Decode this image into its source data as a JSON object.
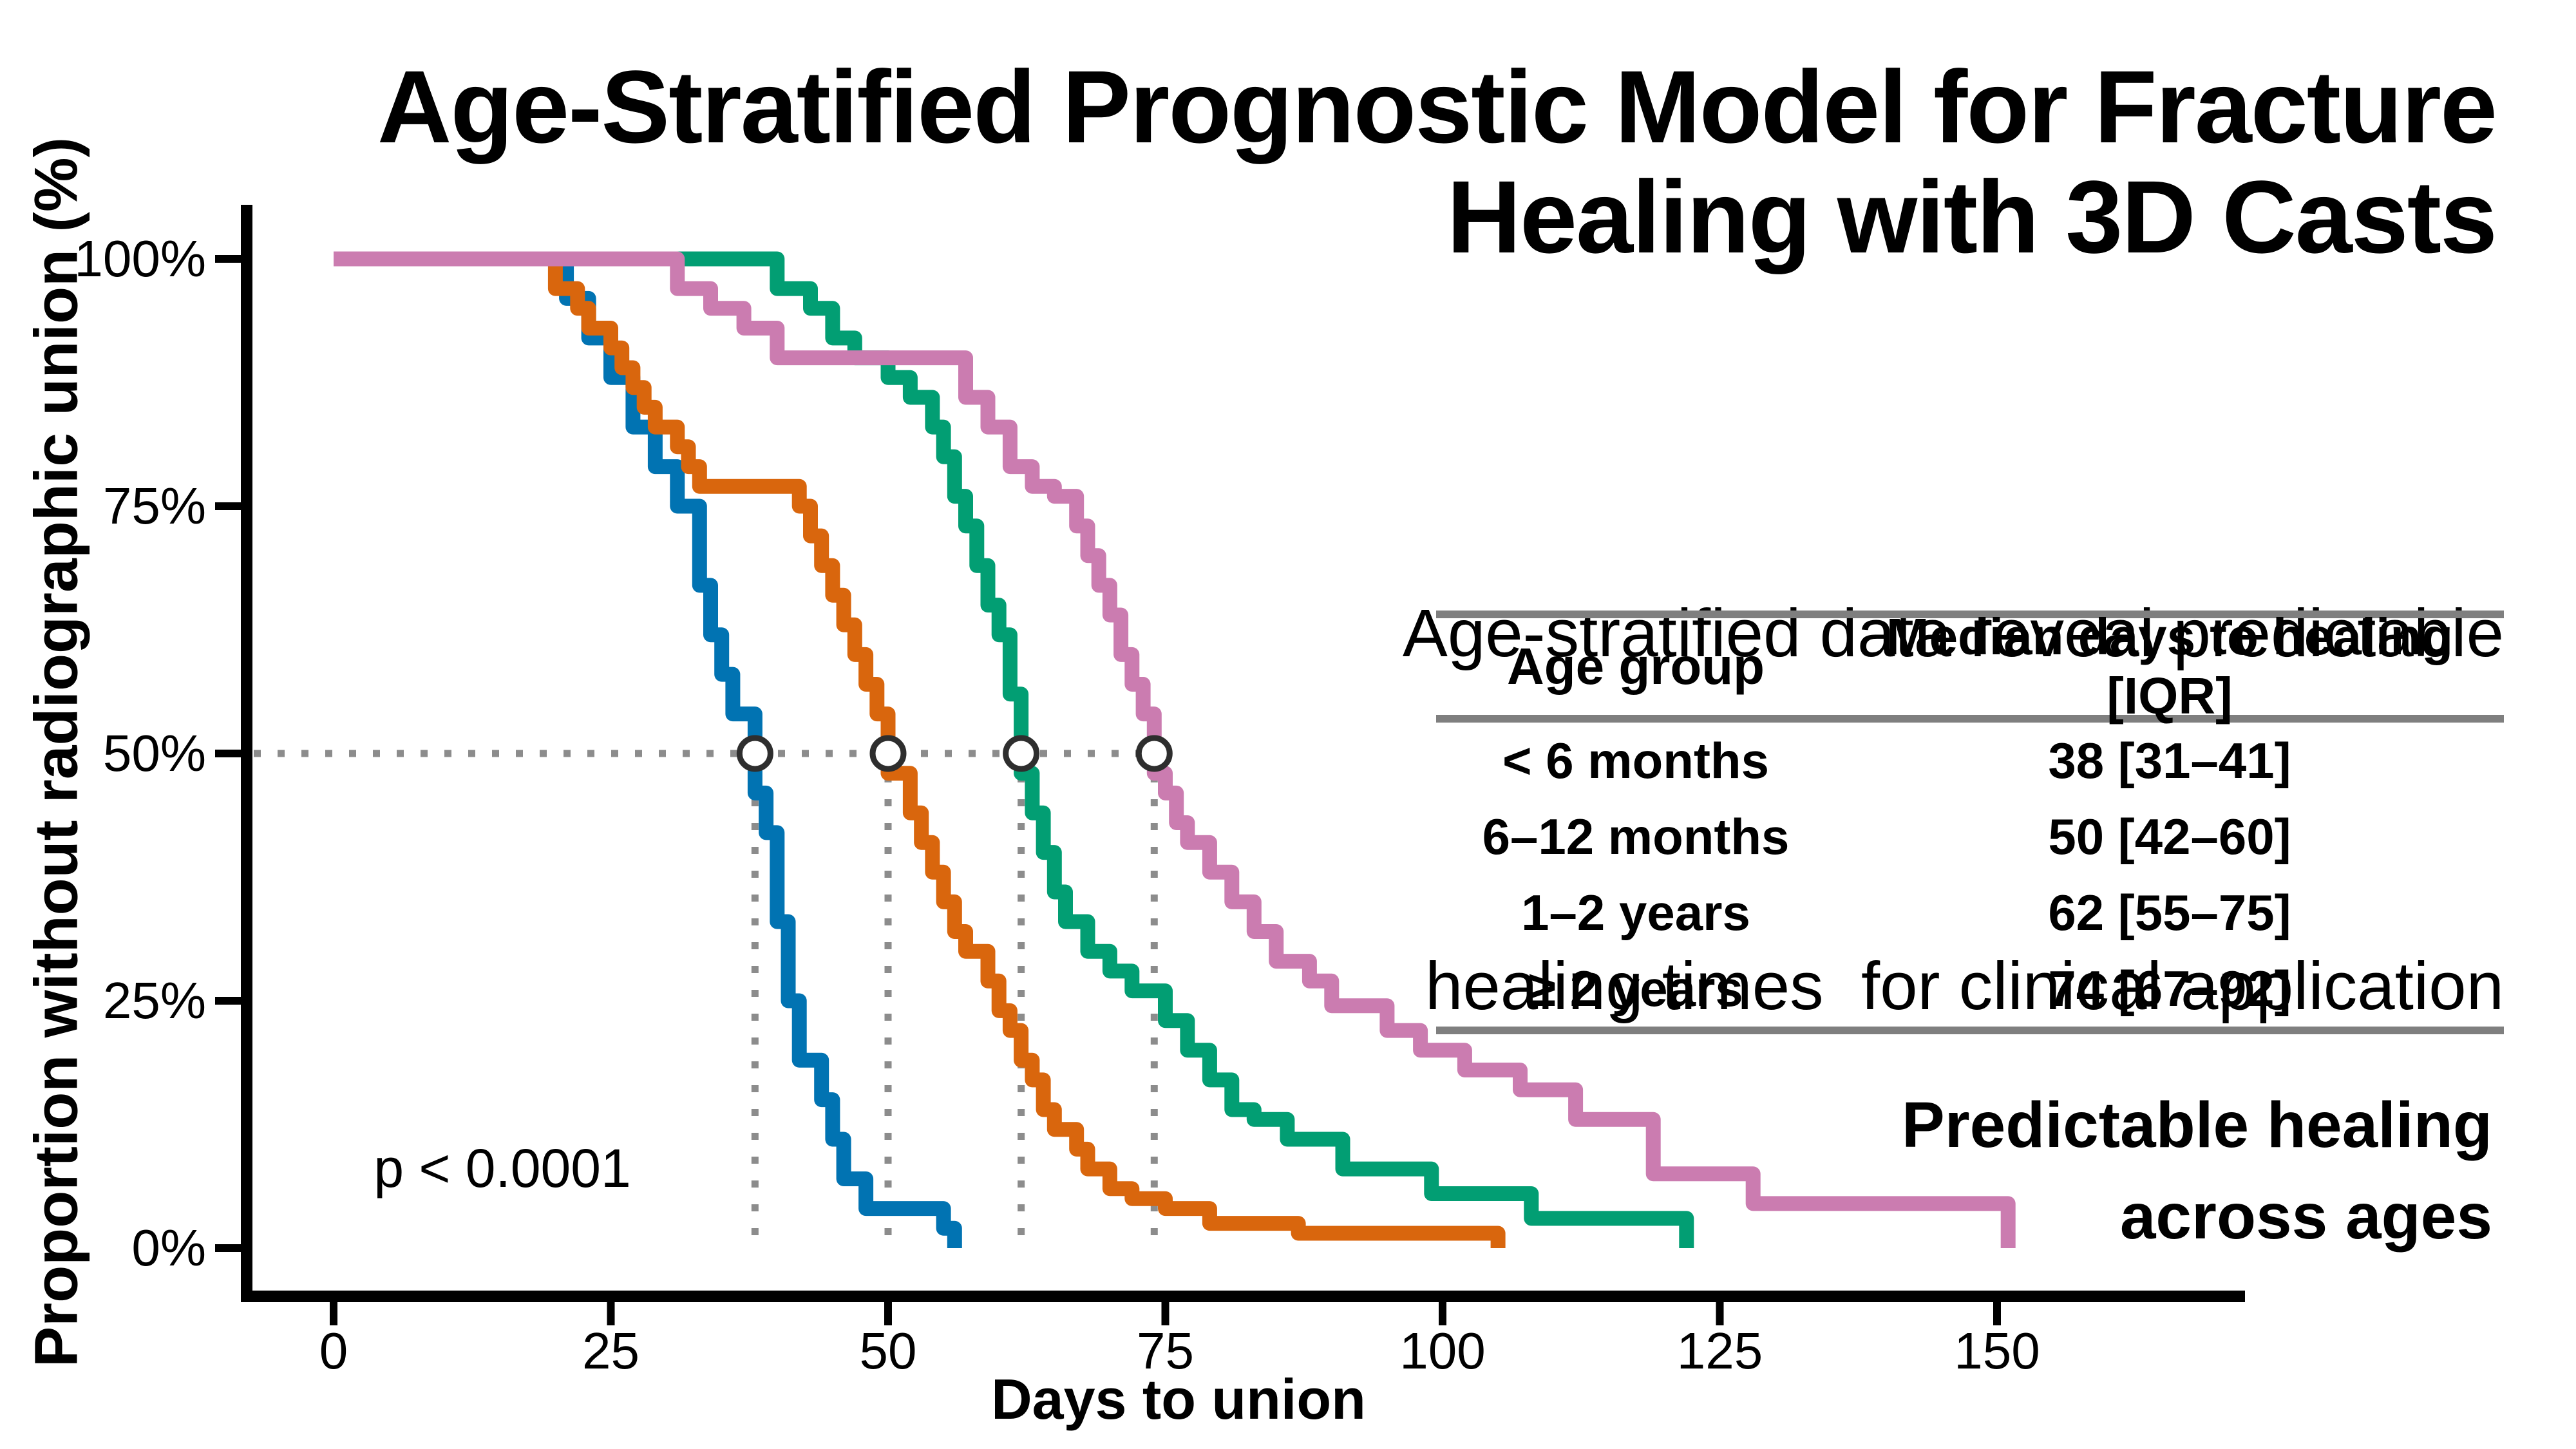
{
  "title": {
    "line1": "Age-Stratified Prognostic Model for Fracture",
    "line2": "Healing with 3D Casts"
  },
  "subtitle": {
    "line1": "Age-stratified data reveal predictable",
    "line2": "healing times  for clinical application"
  },
  "annotations": {
    "p_value": "p < 0.0001",
    "caption_line1": "Predictable healing",
    "caption_line2": "across ages"
  },
  "table": {
    "headers": [
      "Age group",
      "Median days to healing [IQR]"
    ],
    "rows": [
      {
        "age": "< 6 months",
        "value": "38 [31–41]"
      },
      {
        "age": "6–12 months",
        "value": "50 [42–60]"
      },
      {
        "age": "1–2 years",
        "value": "62 [55–75]"
      },
      {
        "age": "≥ 2 years",
        "value": "74 [67–92]"
      }
    ]
  },
  "axes": {
    "x_label": "Days to union",
    "y_label": "Proportion without radiographic union (%)",
    "x_ticks": [
      0,
      25,
      50,
      75,
      100,
      125,
      150
    ],
    "y_ticks": [
      {
        "value": 0,
        "label": "0%"
      },
      {
        "value": 25,
        "label": "25%"
      },
      {
        "value": 50,
        "label": "50%"
      },
      {
        "value": 75,
        "label": "75%"
      },
      {
        "value": 100,
        "label": "100%"
      }
    ]
  },
  "chart_data": {
    "type": "line",
    "subtype": "kaplan-meier-step",
    "title": "Age-Stratified Prognostic Model for Fracture Healing with 3D Casts",
    "xlabel": "Days to union",
    "ylabel": "Proportion without radiographic union (%)",
    "xlim": [
      0,
      160
    ],
    "ylim": [
      0,
      100
    ],
    "grid": false,
    "legend": "none (groups identified in side table)",
    "p_value": "p < 0.0001",
    "guide_color": "#8c8c8c",
    "marker": {
      "fill": "#ffffff",
      "stroke": "#2e2e2e"
    },
    "medians": [
      {
        "group": "< 6 months",
        "day": 38,
        "pct": 50
      },
      {
        "group": "6–12 months",
        "day": 50,
        "pct": 50
      },
      {
        "group": "1–2 years",
        "day": 62,
        "pct": 50
      },
      {
        "group": "≥ 2 years",
        "day": 74,
        "pct": 50
      }
    ],
    "series": [
      {
        "name": "< 6 months",
        "color": "#0173B2",
        "median": 38,
        "iqr": [
          31,
          41
        ],
        "points": [
          [
            0,
            100
          ],
          [
            21,
            96
          ],
          [
            23,
            92
          ],
          [
            25,
            88
          ],
          [
            27,
            83
          ],
          [
            29,
            79
          ],
          [
            31,
            75
          ],
          [
            33,
            67
          ],
          [
            34,
            62
          ],
          [
            35,
            58
          ],
          [
            36,
            54
          ],
          [
            38,
            46
          ],
          [
            39,
            42
          ],
          [
            40,
            33
          ],
          [
            41,
            25
          ],
          [
            42,
            19
          ],
          [
            44,
            15
          ],
          [
            45,
            11
          ],
          [
            46,
            7
          ],
          [
            48,
            4
          ],
          [
            55,
            2
          ],
          [
            56,
            0
          ]
        ]
      },
      {
        "name": "6–12 months",
        "color": "#D9660D",
        "median": 50,
        "iqr": [
          42,
          60
        ],
        "points": [
          [
            0,
            100
          ],
          [
            20,
            97
          ],
          [
            22,
            95
          ],
          [
            23,
            93
          ],
          [
            25,
            91
          ],
          [
            26,
            89
          ],
          [
            27,
            87
          ],
          [
            28,
            85
          ],
          [
            29,
            83
          ],
          [
            31,
            81
          ],
          [
            32,
            79
          ],
          [
            33,
            77
          ],
          [
            42,
            75
          ],
          [
            43,
            72
          ],
          [
            44,
            69
          ],
          [
            45,
            66
          ],
          [
            46,
            63
          ],
          [
            47,
            60
          ],
          [
            48,
            57
          ],
          [
            49,
            54
          ],
          [
            50,
            48
          ],
          [
            52,
            44
          ],
          [
            53,
            41
          ],
          [
            54,
            38
          ],
          [
            55,
            35
          ],
          [
            56,
            32
          ],
          [
            57,
            30
          ],
          [
            59,
            27
          ],
          [
            60,
            24
          ],
          [
            61,
            22
          ],
          [
            62,
            19
          ],
          [
            63,
            17
          ],
          [
            64,
            14
          ],
          [
            65,
            12
          ],
          [
            67,
            10
          ],
          [
            68,
            8
          ],
          [
            70,
            6
          ],
          [
            72,
            5
          ],
          [
            75,
            4
          ],
          [
            79,
            2.5
          ],
          [
            87,
            1.5
          ],
          [
            105,
            0
          ]
        ]
      },
      {
        "name": "1–2 years",
        "color": "#029E73",
        "median": 62,
        "iqr": [
          55,
          75
        ],
        "points": [
          [
            0,
            100
          ],
          [
            40,
            97
          ],
          [
            43,
            95
          ],
          [
            45,
            92
          ],
          [
            47,
            90
          ],
          [
            50,
            88
          ],
          [
            52,
            86
          ],
          [
            54,
            83
          ],
          [
            55,
            80
          ],
          [
            56,
            76
          ],
          [
            57,
            73
          ],
          [
            58,
            69
          ],
          [
            59,
            65
          ],
          [
            60,
            62
          ],
          [
            61,
            56
          ],
          [
            62,
            48
          ],
          [
            63,
            44
          ],
          [
            64,
            40
          ],
          [
            65,
            36
          ],
          [
            66,
            33
          ],
          [
            68,
            30
          ],
          [
            70,
            28
          ],
          [
            72,
            26
          ],
          [
            75,
            23
          ],
          [
            77,
            20
          ],
          [
            79,
            17
          ],
          [
            81,
            14
          ],
          [
            83,
            13
          ],
          [
            86,
            11
          ],
          [
            91,
            8
          ],
          [
            99,
            5.5
          ],
          [
            108,
            3
          ],
          [
            122,
            0
          ]
        ]
      },
      {
        "name": "≥ 2 years",
        "color": "#CB7CB0",
        "median": 74,
        "iqr": [
          67,
          92
        ],
        "points": [
          [
            0,
            100
          ],
          [
            31,
            97
          ],
          [
            34,
            95
          ],
          [
            37,
            93
          ],
          [
            40,
            90
          ],
          [
            57,
            86
          ],
          [
            59,
            83
          ],
          [
            61,
            79
          ],
          [
            63,
            77
          ],
          [
            65,
            76
          ],
          [
            67,
            73
          ],
          [
            68,
            70
          ],
          [
            69,
            67
          ],
          [
            70,
            64
          ],
          [
            71,
            60
          ],
          [
            72,
            57
          ],
          [
            73,
            54
          ],
          [
            74,
            48
          ],
          [
            75,
            46
          ],
          [
            76,
            43
          ],
          [
            77,
            41
          ],
          [
            79,
            38
          ],
          [
            81,
            35
          ],
          [
            83,
            32
          ],
          [
            85,
            29
          ],
          [
            88,
            27
          ],
          [
            90,
            24.5
          ],
          [
            95,
            22
          ],
          [
            98,
            20
          ],
          [
            102,
            18
          ],
          [
            107,
            16
          ],
          [
            112,
            13
          ],
          [
            119,
            7.5
          ],
          [
            128,
            4.5
          ],
          [
            151,
            0
          ]
        ]
      }
    ]
  }
}
